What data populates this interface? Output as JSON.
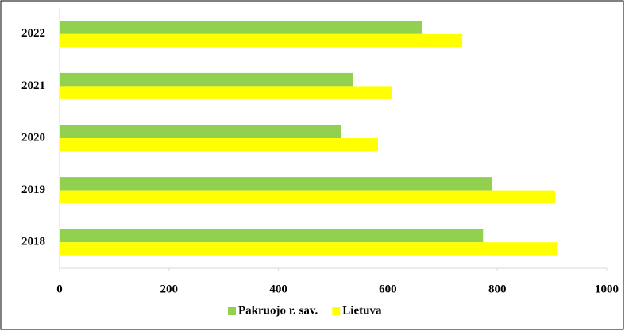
{
  "chart_data": {
    "type": "hbar",
    "categories": [
      "2018",
      "2019",
      "2020",
      "2021",
      "2022"
    ],
    "series": [
      {
        "name": "Pakruojo r. sav.",
        "color": "#92d050",
        "values": [
          774,
          790,
          514,
          537,
          662
        ]
      },
      {
        "name": "Lietuva",
        "color": "#ffff00",
        "values": [
          910,
          906,
          582,
          607,
          736
        ]
      }
    ],
    "xlim": [
      0,
      1000
    ],
    "xticks": [
      0,
      200,
      400,
      600,
      800,
      1000
    ],
    "grid": false,
    "legend": "bottom"
  }
}
